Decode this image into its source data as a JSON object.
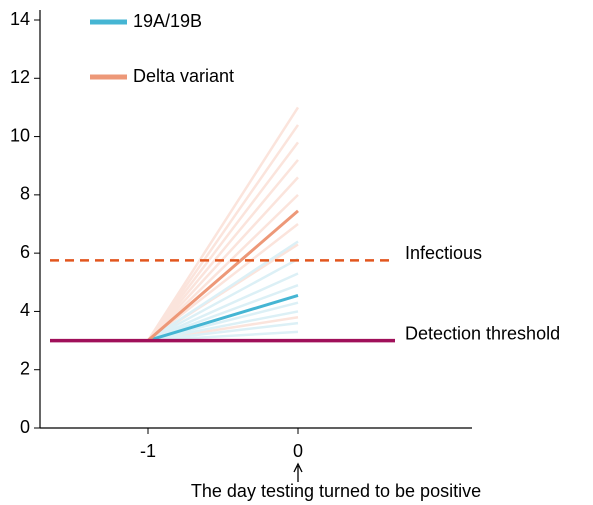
{
  "chart_data": {
    "type": "line",
    "x": [
      -1,
      0
    ],
    "xlim": [
      -1.72,
      1.16
    ],
    "xticks": [
      -1,
      0
    ],
    "ylim": [
      0,
      14
    ],
    "yticks": [
      0,
      2,
      4,
      6,
      8,
      10,
      12,
      14
    ],
    "legend": "upper left",
    "annotation": "The day testing turned to be positive",
    "annotation_x": 0,
    "hlines": [
      {
        "value": 5.75,
        "label": "Infectious",
        "color": "#e2561e",
        "dashed": true
      },
      {
        "value": 3.0,
        "label": "Detection threshold",
        "color": "#a0105a",
        "dashed": false
      }
    ],
    "series": [
      {
        "color": "#fbe4dc",
        "values": [
          3,
          11
        ]
      },
      {
        "color": "#fbe4dc",
        "values": [
          3,
          10.4
        ]
      },
      {
        "color": "#fbe4dc",
        "values": [
          3,
          9.8
        ]
      },
      {
        "color": "#fbe4dc",
        "values": [
          3,
          9.2
        ]
      },
      {
        "color": "#fbe4dc",
        "values": [
          3,
          8.6
        ]
      },
      {
        "color": "#fbe4dc",
        "values": [
          3,
          8
        ]
      },
      {
        "color": "#fbe4dc",
        "values": [
          3,
          7
        ]
      },
      {
        "color": "#fbe4dc",
        "values": [
          3,
          6.3
        ]
      },
      {
        "color": "#fbe4dc",
        "values": [
          3,
          3.8
        ]
      },
      {
        "color": "#dcf0f6",
        "values": [
          3,
          3.3
        ]
      },
      {
        "color": "#dcf0f6",
        "values": [
          3,
          3.6
        ]
      },
      {
        "color": "#dcf0f6",
        "values": [
          3,
          4
        ]
      },
      {
        "color": "#dcf0f6",
        "values": [
          3,
          4.3
        ]
      },
      {
        "color": "#dcf0f6",
        "values": [
          3,
          4.9
        ]
      },
      {
        "color": "#dcf0f6",
        "values": [
          3,
          5.3
        ]
      },
      {
        "color": "#dcf0f6",
        "values": [
          3,
          5.8
        ]
      },
      {
        "color": "#dcf0f6",
        "values": [
          3,
          6.4
        ]
      },
      {
        "name": "19A/19B",
        "color": "#45b5d3",
        "values": [
          3,
          4.55
        ]
      },
      {
        "name": "Delta variant",
        "color": "#ed9878",
        "values": [
          3,
          7.45
        ]
      }
    ]
  }
}
